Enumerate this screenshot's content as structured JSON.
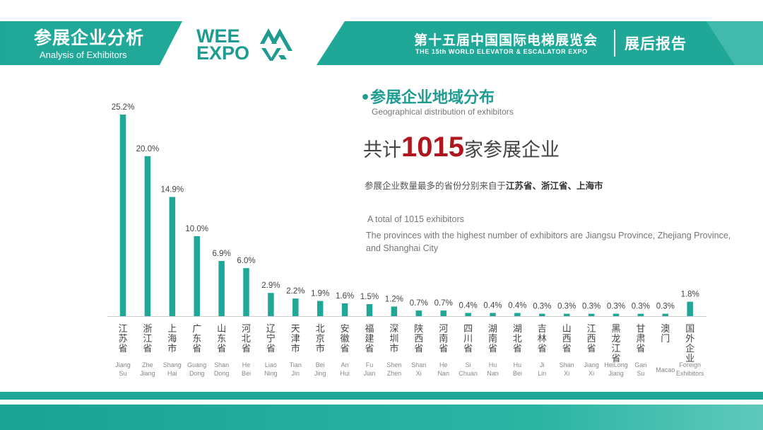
{
  "header": {
    "title": "参展企业分析",
    "subtitle": "Analysis of Exhibitors",
    "logo_line1": "WEE",
    "logo_line2": "EXPO",
    "expo_cn": "第十五届中国国际电梯展览会",
    "expo_en": "THE 15th WORLD ELEVATOR & ESCALATOR EXPO",
    "report": "展后报告"
  },
  "section": {
    "title": "•参展企业地域分布",
    "subtitle": "Geographical distribution of exhibitors",
    "total_prefix": "共计",
    "total_number": "1015",
    "total_suffix": "家参展企业",
    "highest_cn_prefix": "参展企业数量最多的省份分别来自于",
    "highest_cn_provinces": "江苏省、浙江省、上海市",
    "total_en": "A total of 1015 exhibitors",
    "highest_en": "The provinces with the highest number of exhibitors are Jiangsu Province, Zhejiang Province, and Shanghai City"
  },
  "colors": {
    "teal": "#1f9c92",
    "bar": "#1fa898",
    "highlight": "#b0161e",
    "axis": "#cccccc"
  },
  "chart_data": {
    "type": "bar",
    "unit": "%",
    "ylim": [
      0,
      25.2
    ],
    "categories": [
      {
        "cn": "江苏省",
        "en": [
          "Jiang",
          "Su"
        ]
      },
      {
        "cn": "浙江省",
        "en": [
          "Zhe",
          "Jiang"
        ]
      },
      {
        "cn": "上海市",
        "en": [
          "Shang",
          "Hai"
        ]
      },
      {
        "cn": "广东省",
        "en": [
          "Guang",
          "Dong"
        ]
      },
      {
        "cn": "山东省",
        "en": [
          "Shan",
          "Dong"
        ]
      },
      {
        "cn": "河北省",
        "en": [
          "He",
          "Bei"
        ]
      },
      {
        "cn": "辽宁省",
        "en": [
          "Liao",
          "Ning"
        ]
      },
      {
        "cn": "天津市",
        "en": [
          "Tian",
          "Jin"
        ]
      },
      {
        "cn": "北京市",
        "en": [
          "Bei",
          "Jing"
        ]
      },
      {
        "cn": "安徽省",
        "en": [
          "An",
          "Hui"
        ]
      },
      {
        "cn": "福建省",
        "en": [
          "Fu",
          "Jian"
        ]
      },
      {
        "cn": "深圳市",
        "en": [
          "Shen",
          "Zhen"
        ]
      },
      {
        "cn": "陕西省",
        "en": [
          "Shan",
          "Xi"
        ]
      },
      {
        "cn": "河南省",
        "en": [
          "He",
          "Nan"
        ]
      },
      {
        "cn": "四川省",
        "en": [
          "Si",
          "Chuan"
        ]
      },
      {
        "cn": "湖南省",
        "en": [
          "Hu",
          "Nan"
        ]
      },
      {
        "cn": "湖北省",
        "en": [
          "Hu",
          "Bei"
        ]
      },
      {
        "cn": "吉林省",
        "en": [
          "Ji",
          "Lin"
        ]
      },
      {
        "cn": "山西省",
        "en": [
          "Shan",
          "Xi"
        ]
      },
      {
        "cn": "江西省",
        "en": [
          "Jiang",
          "Xi"
        ]
      },
      {
        "cn": "黑龙江省",
        "en": [
          "HeiLong",
          "Jiang"
        ]
      },
      {
        "cn": "甘肃省",
        "en": [
          "Gan",
          "Su"
        ]
      },
      {
        "cn": "澳门",
        "en": [
          "Macao"
        ]
      },
      {
        "cn": "国外企业",
        "en": [
          "Foreign",
          "Exhibitors"
        ]
      }
    ],
    "values": [
      25.2,
      20.0,
      14.9,
      10.0,
      6.9,
      6.0,
      2.9,
      2.2,
      1.9,
      1.6,
      1.5,
      1.2,
      0.7,
      0.7,
      0.4,
      0.4,
      0.4,
      0.3,
      0.3,
      0.3,
      0.3,
      0.3,
      0.3,
      1.8
    ],
    "labels": [
      "25.2%",
      "20.0%",
      "14.9%",
      "10.0%",
      "6.9%",
      "6.0%",
      "2.9%",
      "2.2%",
      "1.9%",
      "1.6%",
      "1.5%",
      "1.2%",
      "0.7%",
      "0.7%",
      "0.4%",
      "0.4%",
      "0.4%",
      "0.3%",
      "0.3%",
      "0.3%",
      "0.3%",
      "0.3%",
      "0.3%",
      "1.8%"
    ]
  }
}
